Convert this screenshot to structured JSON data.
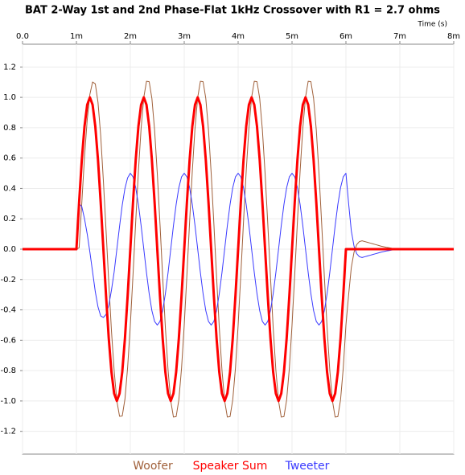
{
  "chart_data": {
    "type": "line",
    "title": "BAT 2-Way 1st and 2nd Phase-Flat 1kHz Crossover with R1 = 2.7 ohms",
    "x_label": "Time  (s)",
    "xlim": [
      0,
      8
    ],
    "ylim": [
      -1.35,
      1.35
    ],
    "xticks": [
      {
        "value": 0,
        "label": "0.0"
      },
      {
        "value": 1,
        "label": "1m"
      },
      {
        "value": 2,
        "label": "2m"
      },
      {
        "value": 3,
        "label": "3m"
      },
      {
        "value": 4,
        "label": "4m"
      },
      {
        "value": 5,
        "label": "5m"
      },
      {
        "value": 6,
        "label": "6m"
      },
      {
        "value": 7,
        "label": "7m"
      },
      {
        "value": 8,
        "label": "8m"
      }
    ],
    "yticks": [
      1.2,
      {
        "value": 1,
        "label": "1.0"
      },
      0.8,
      0.6,
      0.4,
      0.2,
      {
        "value": 0,
        "label": "0.0"
      },
      -0.2,
      -0.4,
      -0.6,
      -0.8,
      {
        "value": -1,
        "label": "-1.0"
      },
      -1.2
    ],
    "grid": true,
    "legend": "bottom",
    "x": [
      0,
      1,
      1.05,
      1.1,
      1.15,
      1.2,
      1.25,
      1.3,
      1.35,
      1.4,
      1.45,
      1.5,
      1.55,
      1.6,
      1.65,
      1.7,
      1.75,
      1.8,
      1.85,
      1.9,
      1.95,
      2,
      2.05,
      2.1,
      2.15,
      2.2,
      2.25,
      2.3,
      2.35,
      2.4,
      2.45,
      2.5,
      2.55,
      2.6,
      2.65,
      2.7,
      2.75,
      2.8,
      2.85,
      2.9,
      2.95,
      3,
      3.05,
      3.1,
      3.15,
      3.2,
      3.25,
      3.3,
      3.35,
      3.4,
      3.45,
      3.5,
      3.55,
      3.6,
      3.65,
      3.7,
      3.75,
      3.8,
      3.85,
      3.9,
      3.95,
      4,
      4.05,
      4.1,
      4.15,
      4.2,
      4.25,
      4.3,
      4.35,
      4.4,
      4.45,
      4.5,
      4.55,
      4.6,
      4.65,
      4.7,
      4.75,
      4.8,
      4.85,
      4.9,
      4.95,
      5,
      5.05,
      5.1,
      5.15,
      5.2,
      5.25,
      5.3,
      5.35,
      5.4,
      5.45,
      5.5,
      5.55,
      5.6,
      5.65,
      5.7,
      5.75,
      5.8,
      5.85,
      5.9,
      5.95,
      6,
      6.05,
      6.1,
      6.15,
      6.2,
      6.25,
      6.3,
      6.35,
      6.4,
      6.45,
      6.5,
      6.55,
      6.6,
      6.65,
      6.7,
      6.75,
      6.8,
      6.85,
      6.9,
      6.95,
      7,
      8
    ],
    "series": [
      {
        "name": "Woofer",
        "color": "#a0603a",
        "width": 1,
        "values": [
          0,
          0,
          0.009,
          0.308,
          0.609,
          0.851,
          1.02,
          1.101,
          1.089,
          0.968,
          0.749,
          0.45,
          0.121,
          -0.218,
          -0.539,
          -0.801,
          -1,
          -1.101,
          -1.099,
          -0.988,
          -0.779,
          -0.5,
          -0.167,
          0.183,
          0.515,
          0.796,
          1,
          1.106,
          1.103,
          0.993,
          0.785,
          0.5,
          0.167,
          -0.183,
          -0.515,
          -0.796,
          -1,
          -1.106,
          -1.103,
          -0.993,
          -0.785,
          -0.5,
          -0.167,
          0.183,
          0.515,
          0.796,
          1,
          1.106,
          1.103,
          0.993,
          0.785,
          0.5,
          0.167,
          -0.183,
          -0.515,
          -0.796,
          -1,
          -1.106,
          -1.103,
          -0.993,
          -0.785,
          -0.5,
          -0.167,
          0.183,
          0.515,
          0.796,
          1,
          1.106,
          1.103,
          0.993,
          0.785,
          0.5,
          0.167,
          -0.183,
          -0.515,
          -0.796,
          -1,
          -1.106,
          -1.103,
          -0.993,
          -0.785,
          -0.5,
          -0.167,
          0.183,
          0.515,
          0.796,
          1,
          1.106,
          1.103,
          0.993,
          0.785,
          0.5,
          0.167,
          -0.183,
          -0.515,
          -0.796,
          -1,
          -1.106,
          -1.103,
          -0.993,
          -0.785,
          -0.5,
          -0.3,
          -0.12,
          -0.02,
          0.03,
          0.05,
          0.055,
          0.05,
          0.045,
          0.04,
          0.035,
          0.03,
          0.025,
          0.02,
          0.016,
          0.012,
          0.009,
          0.006,
          0.004,
          0.002,
          0,
          0
        ]
      },
      {
        "name": "Speaker Sum",
        "color": "#ff0000",
        "width": 3,
        "values": [
          0,
          0,
          0.309,
          0.588,
          0.809,
          0.951,
          1,
          0.951,
          0.809,
          0.588,
          0.309,
          0,
          -0.309,
          -0.588,
          -0.809,
          -0.951,
          -1,
          -0.951,
          -0.809,
          -0.588,
          -0.309,
          0,
          0.309,
          0.588,
          0.809,
          0.951,
          1,
          0.951,
          0.809,
          0.588,
          0.309,
          0,
          -0.309,
          -0.588,
          -0.809,
          -0.951,
          -1,
          -0.951,
          -0.809,
          -0.588,
          -0.309,
          0,
          0.309,
          0.588,
          0.809,
          0.951,
          1,
          0.951,
          0.809,
          0.588,
          0.309,
          0,
          -0.309,
          -0.588,
          -0.809,
          -0.951,
          -1,
          -0.951,
          -0.809,
          -0.588,
          -0.309,
          0,
          0.309,
          0.588,
          0.809,
          0.951,
          1,
          0.951,
          0.809,
          0.588,
          0.309,
          0,
          -0.309,
          -0.588,
          -0.809,
          -0.951,
          -1,
          -0.951,
          -0.809,
          -0.588,
          -0.309,
          0,
          0.309,
          0.588,
          0.809,
          0.951,
          1,
          0.951,
          0.809,
          0.588,
          0.309,
          0,
          -0.309,
          -0.588,
          -0.809,
          -0.951,
          -1,
          -0.951,
          -0.809,
          -0.588,
          -0.309,
          0,
          0,
          0,
          0,
          0,
          0,
          0,
          0,
          0,
          0,
          0,
          0,
          0,
          0,
          0,
          0,
          0,
          0,
          0,
          0,
          0,
          0
        ]
      },
      {
        "name": "Tweeter",
        "color": "#3a3aff",
        "width": 1,
        "values": [
          0,
          0,
          0.3,
          0.28,
          0.2,
          0.1,
          -0.02,
          -0.15,
          -0.28,
          -0.38,
          -0.44,
          -0.45,
          -0.43,
          -0.37,
          -0.27,
          -0.15,
          0,
          0.15,
          0.29,
          0.4,
          0.47,
          0.5,
          0.476,
          0.405,
          0.294,
          0.155,
          0,
          -0.155,
          -0.294,
          -0.405,
          -0.476,
          -0.5,
          -0.476,
          -0.405,
          -0.294,
          -0.155,
          0,
          0.155,
          0.294,
          0.405,
          0.476,
          0.5,
          0.476,
          0.405,
          0.294,
          0.155,
          0,
          -0.155,
          -0.294,
          -0.405,
          -0.476,
          -0.5,
          -0.476,
          -0.405,
          -0.294,
          -0.155,
          0,
          0.155,
          0.294,
          0.405,
          0.476,
          0.5,
          0.476,
          0.405,
          0.294,
          0.155,
          0,
          -0.155,
          -0.294,
          -0.405,
          -0.476,
          -0.5,
          -0.476,
          -0.405,
          -0.294,
          -0.155,
          0,
          0.155,
          0.294,
          0.405,
          0.476,
          0.5,
          0.476,
          0.405,
          0.294,
          0.155,
          0,
          -0.155,
          -0.294,
          -0.405,
          -0.476,
          -0.5,
          -0.476,
          -0.405,
          -0.294,
          -0.155,
          0,
          0.155,
          0.294,
          0.405,
          0.476,
          0.5,
          0.3,
          0.12,
          0.02,
          -0.03,
          -0.05,
          -0.055,
          -0.05,
          -0.045,
          -0.04,
          -0.035,
          -0.03,
          -0.025,
          -0.02,
          -0.016,
          -0.012,
          -0.009,
          -0.006,
          -0.004,
          -0.002,
          0,
          0
        ]
      }
    ]
  }
}
